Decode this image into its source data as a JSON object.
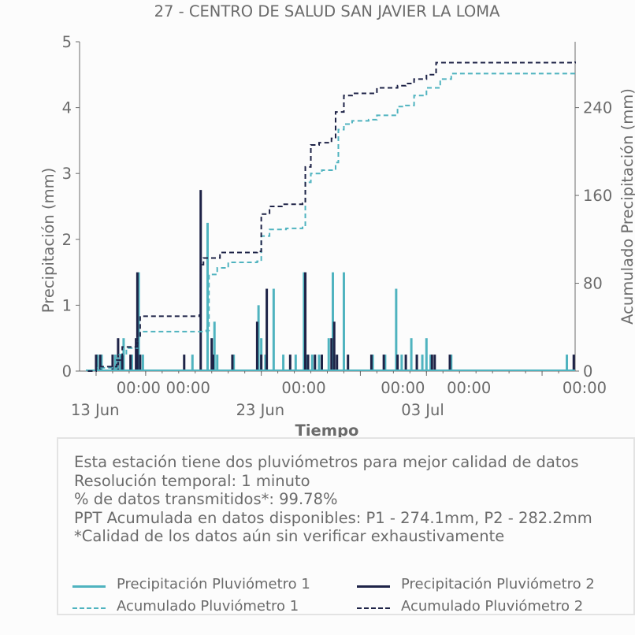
{
  "chart_data": {
    "type": "bar+line",
    "title": "27 - CENTRO DE SALUD SAN JAVIER LA LOMA",
    "xlabel": "Tiempo",
    "ylabel_left": "Precipitación (mm)",
    "ylabel_right": "Acumulado Precipitación (mm)",
    "ylim_left": [
      0,
      5
    ],
    "ylim_right": [
      0,
      300
    ],
    "yticks_left": [
      "0",
      "1",
      "2",
      "3",
      "4",
      "5"
    ],
    "yticks_right": [
      "0",
      "80",
      "160",
      "240"
    ],
    "xlim": [
      "2023-06-12",
      "2023-07-12"
    ],
    "xticks": [
      {
        "top": "00:00",
        "bottom": "13 Jun",
        "x": "2023-06-13"
      },
      {
        "top": "00:00",
        "bottom": "",
        "x": "2023-06-16"
      },
      {
        "top": "00:00",
        "bottom": "23 Jun",
        "x": "2023-06-23"
      },
      {
        "top": "00:00",
        "bottom": "",
        "x": "2023-06-29"
      },
      {
        "top": "00:00",
        "bottom": "03 Jul",
        "x": "2023-07-03"
      },
      {
        "top": "00:00",
        "bottom": "",
        "x": "2023-07-10"
      }
    ],
    "series": [
      {
        "name": "Precipitación Pluviómetro 1",
        "kind": "bar",
        "color": "#4fb3bf",
        "points": [
          [
            "2023-06-13 02:00",
            0.25
          ],
          [
            "2023-06-13 08:00",
            0.25
          ],
          [
            "2023-06-14 04:00",
            0.25
          ],
          [
            "2023-06-14 12:00",
            0.25
          ],
          [
            "2023-06-14 16:00",
            0.5
          ],
          [
            "2023-06-15 04:00",
            0.25
          ],
          [
            "2023-06-15 12:00",
            0.5
          ],
          [
            "2023-06-15 14:00",
            1.5
          ],
          [
            "2023-06-15 20:00",
            0.25
          ],
          [
            "2023-06-18 20:00",
            0.25
          ],
          [
            "2023-06-19 18:00",
            2.25
          ],
          [
            "2023-06-20 04:00",
            0.75
          ],
          [
            "2023-06-20 08:00",
            0.25
          ],
          [
            "2023-06-21 08:00",
            0.25
          ],
          [
            "2023-06-22 20:00",
            1.0
          ],
          [
            "2023-06-23 00:00",
            0.5
          ],
          [
            "2023-06-23 06:00",
            0.25
          ],
          [
            "2023-06-23 18:00",
            1.25
          ],
          [
            "2023-06-24 08:00",
            0.25
          ],
          [
            "2023-06-25 02:00",
            0.25
          ],
          [
            "2023-06-25 14:00",
            1.5
          ],
          [
            "2023-06-25 18:00",
            0.25
          ],
          [
            "2023-06-26 02:00",
            0.25
          ],
          [
            "2023-06-26 12:00",
            0.25
          ],
          [
            "2023-06-27 02:00",
            0.5
          ],
          [
            "2023-06-27 08:00",
            1.5
          ],
          [
            "2023-06-27 10:00",
            0.25
          ],
          [
            "2023-06-28 00:00",
            1.5
          ],
          [
            "2023-06-29 18:00",
            0.25
          ],
          [
            "2023-06-30 12:00",
            0.25
          ],
          [
            "2023-07-01 04:00",
            1.25
          ],
          [
            "2023-07-01 12:00",
            0.25
          ],
          [
            "2023-07-02 02:00",
            0.5
          ],
          [
            "2023-07-02 10:00",
            0.25
          ],
          [
            "2023-07-02 18:00",
            0.25
          ],
          [
            "2023-07-03 00:00",
            0.5
          ],
          [
            "2023-07-03 06:00",
            0.25
          ],
          [
            "2023-07-04 12:00",
            0.25
          ],
          [
            "2023-07-11 12:00",
            0.25
          ]
        ]
      },
      {
        "name": "Precipitación Pluviómetro 2",
        "kind": "bar",
        "color": "#1e2347",
        "points": [
          [
            "2023-06-13 00:00",
            0.25
          ],
          [
            "2023-06-13 06:00",
            0.25
          ],
          [
            "2023-06-14 00:00",
            0.25
          ],
          [
            "2023-06-14 08:00",
            0.5
          ],
          [
            "2023-06-14 14:00",
            0.25
          ],
          [
            "2023-06-15 02:00",
            0.25
          ],
          [
            "2023-06-15 10:00",
            0.5
          ],
          [
            "2023-06-15 12:00",
            1.5
          ],
          [
            "2023-06-15 16:00",
            0.25
          ],
          [
            "2023-06-18 08:00",
            0.25
          ],
          [
            "2023-06-19 08:00",
            2.75
          ],
          [
            "2023-06-20 00:00",
            0.5
          ],
          [
            "2023-06-20 02:00",
            0.25
          ],
          [
            "2023-06-21 06:00",
            0.25
          ],
          [
            "2023-06-22 18:00",
            0.75
          ],
          [
            "2023-06-23 00:00",
            0.25
          ],
          [
            "2023-06-23 08:00",
            1.25
          ],
          [
            "2023-06-24 18:00",
            0.25
          ],
          [
            "2023-06-25 16:00",
            1.5
          ],
          [
            "2023-06-25 20:00",
            0.25
          ],
          [
            "2023-06-26 06:00",
            0.25
          ],
          [
            "2023-06-26 16:00",
            0.25
          ],
          [
            "2023-06-27 06:00",
            0.5
          ],
          [
            "2023-06-27 10:00",
            0.75
          ],
          [
            "2023-06-27 14:00",
            0.25
          ],
          [
            "2023-06-28 06:00",
            0.25
          ],
          [
            "2023-06-29 16:00",
            0.25
          ],
          [
            "2023-06-30 10:00",
            0.25
          ],
          [
            "2023-07-01 06:00",
            0.25
          ],
          [
            "2023-07-01 18:00",
            0.25
          ],
          [
            "2023-07-02 10:00",
            0.25
          ],
          [
            "2023-07-03 08:00",
            0.25
          ],
          [
            "2023-07-03 12:00",
            0.25
          ],
          [
            "2023-07-04 10:00",
            0.25
          ],
          [
            "2023-07-11 22:00",
            0.25
          ]
        ]
      },
      {
        "name": "Acumulado Pluviómetro 1",
        "kind": "step-dashed",
        "axis": "right",
        "color": "#4fb3bf",
        "points": [
          [
            "2023-06-12 12:00",
            0
          ],
          [
            "2023-06-13 00:00",
            3
          ],
          [
            "2023-06-14 08:00",
            15
          ],
          [
            "2023-06-14 20:00",
            21
          ],
          [
            "2023-06-15 12:00",
            30
          ],
          [
            "2023-06-15 16:00",
            36
          ],
          [
            "2023-06-19 16:00",
            37
          ],
          [
            "2023-06-19 20:00",
            88
          ],
          [
            "2023-06-20 08:00",
            94
          ],
          [
            "2023-06-21 00:00",
            99
          ],
          [
            "2023-06-22 18:00",
            100
          ],
          [
            "2023-06-23 00:00",
            123
          ],
          [
            "2023-06-23 12:00",
            129
          ],
          [
            "2023-06-24 12:00",
            130
          ],
          [
            "2023-06-25 12:00",
            132
          ],
          [
            "2023-06-25 16:00",
            172
          ],
          [
            "2023-06-26 00:00",
            180
          ],
          [
            "2023-06-26 16:00",
            183
          ],
          [
            "2023-06-27 12:00",
            190
          ],
          [
            "2023-06-27 16:00",
            220
          ],
          [
            "2023-06-28 00:00",
            225
          ],
          [
            "2023-06-28 12:00",
            228
          ],
          [
            "2023-06-29 12:00",
            229
          ],
          [
            "2023-06-30 00:00",
            233
          ],
          [
            "2023-07-01 06:00",
            241
          ],
          [
            "2023-07-01 18:00",
            242
          ],
          [
            "2023-07-02 06:00",
            251
          ],
          [
            "2023-07-03 00:00",
            258
          ],
          [
            "2023-07-03 20:00",
            266
          ],
          [
            "2023-07-04 12:00",
            271
          ],
          [
            "2023-07-12 00:00",
            271
          ]
        ]
      },
      {
        "name": "Acumulado Pluviómetro 2",
        "kind": "step-dashed",
        "axis": "right",
        "color": "#1e2347",
        "points": [
          [
            "2023-06-12 12:00",
            0
          ],
          [
            "2023-06-13 00:00",
            4
          ],
          [
            "2023-06-14 06:00",
            10
          ],
          [
            "2023-06-14 14:00",
            22
          ],
          [
            "2023-06-15 12:00",
            30
          ],
          [
            "2023-06-15 16:00",
            50
          ],
          [
            "2023-06-19 06:00",
            51
          ],
          [
            "2023-06-19 08:00",
            97
          ],
          [
            "2023-06-19 12:00",
            103
          ],
          [
            "2023-06-20 12:00",
            108
          ],
          [
            "2023-06-22 18:00",
            109
          ],
          [
            "2023-06-23 00:00",
            143
          ],
          [
            "2023-06-23 12:00",
            150
          ],
          [
            "2023-06-24 06:00",
            152
          ],
          [
            "2023-06-25 12:00",
            153
          ],
          [
            "2023-06-25 16:00",
            186
          ],
          [
            "2023-06-26 00:00",
            206
          ],
          [
            "2023-06-26 12:00",
            208
          ],
          [
            "2023-06-27 06:00",
            212
          ],
          [
            "2023-06-27 12:00",
            236
          ],
          [
            "2023-06-28 00:00",
            251
          ],
          [
            "2023-06-28 12:00",
            253
          ],
          [
            "2023-06-29 12:00",
            253
          ],
          [
            "2023-06-30 00:00",
            258
          ],
          [
            "2023-07-01 06:00",
            260
          ],
          [
            "2023-07-01 18:00",
            262
          ],
          [
            "2023-07-02 06:00",
            266
          ],
          [
            "2023-07-03 00:00",
            270
          ],
          [
            "2023-07-03 14:00",
            281
          ],
          [
            "2023-07-12 00:00",
            282
          ]
        ]
      }
    ],
    "grid": false
  },
  "info": {
    "lines": [
      "Esta estación tiene dos pluviómetros para mejor calidad de datos",
      "Resolución temporal: 1 minuto",
      "% de datos transmitidos*: 99.78%",
      "PPT Acumulada en datos disponibles: P1 - 274.1mm, P2 - 282.2mm",
      "*Calidad de los datos aún sin verificar exhaustivamente"
    ]
  },
  "legend": {
    "items": [
      {
        "label": "Precipitación Pluviómetro 1",
        "color": "#4fb3bf",
        "style": "solid"
      },
      {
        "label": "Precipitación Pluviómetro 2",
        "color": "#1e2347",
        "style": "solid"
      },
      {
        "label": "Acumulado Pluviómetro 1",
        "color": "#4fb3bf",
        "style": "dashed"
      },
      {
        "label": "Acumulado Pluviómetro 2",
        "color": "#1e2347",
        "style": "dashed"
      }
    ]
  }
}
